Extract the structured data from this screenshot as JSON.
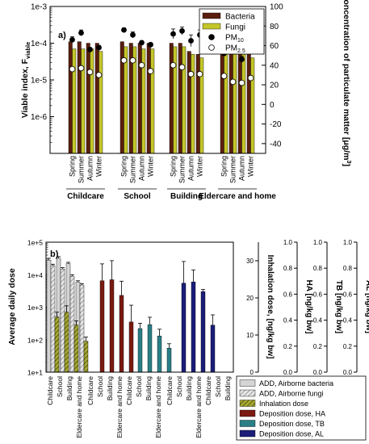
{
  "chart_data": [
    {
      "panel_label": "a)",
      "type": "bar",
      "ylabel": "Viable index, F",
      "ylabel_sub": "viable",
      "y2label": "Concentration of particulate matter [μg/m",
      "y2label_sup": "3",
      "y2label_end": "]",
      "yscale": "log",
      "ylim": [
        1e-07,
        0.001
      ],
      "yticks": [
        "1e-6",
        "1e-5",
        "1e-4",
        "1e-3"
      ],
      "y2lim": [
        -50,
        100
      ],
      "y2ticks": [
        "-40",
        "-20",
        "0",
        "20",
        "40",
        "60",
        "80",
        "100"
      ],
      "groups": [
        "Childcare",
        "School",
        "Building",
        "Eldercare and home"
      ],
      "seasons": [
        "Spring",
        "Summer",
        "Autumn",
        "Winter"
      ],
      "colors": {
        "Bacteria": "#5a1e0e",
        "Fungi": "#c4c62a",
        "PM10": "#000000",
        "PM2.5": "#ffffff"
      },
      "legend": [
        {
          "label": "Bacteria",
          "kind": "bar"
        },
        {
          "label": "Fungi",
          "kind": "bar"
        },
        {
          "label": "PM",
          "sub": "10",
          "kind": "filled-circle"
        },
        {
          "label": "PM",
          "sub": "2.5",
          "kind": "open-circle"
        }
      ],
      "series": [
        {
          "name": "Bacteria",
          "values": [
            [
              0.00011,
              0.00011,
              0.0001,
              0.0001
            ],
            [
              0.00011,
              0.0001,
              0.0001,
              0.0001
            ],
            [
              0.0001,
              0.0001,
              6e-05,
              5e-05
            ],
            [
              0.0001,
              0.0001,
              0.0001,
              7e-05
            ]
          ]
        },
        {
          "name": "Fungi",
          "values": [
            [
              7e-05,
              7e-05,
              7e-05,
              6e-05
            ],
            [
              8e-05,
              8e-05,
              7e-05,
              7e-05
            ],
            [
              8e-05,
              8e-05,
              5e-05,
              4e-05
            ],
            [
              5e-05,
              5e-05,
              5e-05,
              4e-05
            ]
          ]
        },
        {
          "name": "PM10",
          "axis": "right",
          "values": [
            [
              66,
              73,
              56,
              58
            ],
            [
              76,
              71,
              63,
              61
            ],
            [
              72,
              75,
              65,
              71
            ],
            [
              52,
              59,
              46,
              54
            ]
          ],
          "errors": [
            [
              3,
              3,
              2,
              2
            ],
            [
              2,
              3,
              2,
              2
            ],
            [
              5,
              4,
              6,
              5
            ],
            [
              2,
              2,
              3,
              3
            ]
          ]
        },
        {
          "name": "PM2.5",
          "axis": "right",
          "values": [
            [
              36,
              37,
              33,
              30
            ],
            [
              45,
              45,
              40,
              34
            ],
            [
              40,
              38,
              31,
              31
            ],
            [
              29,
              23,
              22,
              27
            ]
          ]
        }
      ]
    },
    {
      "panel_label": "b)",
      "type": "bar",
      "ylabel": "Average daily dose",
      "yscale": "log",
      "ylim": [
        10,
        100000
      ],
      "yticks": [
        "1e+1",
        "1e+2",
        "1e+3",
        "1e+4",
        "1e+5"
      ],
      "right_axes": [
        {
          "label": "Inhalation dose, [ng/kg bw]",
          "ticks": [
            "0",
            "10",
            "20",
            "30"
          ],
          "lim": [
            0,
            35
          ]
        },
        {
          "label": "HA [ng/kg bw]",
          "ticks": [
            "0.0",
            "0.2",
            "0.4",
            "0.6",
            "0.8",
            "1.0"
          ],
          "lim": [
            0,
            1
          ]
        },
        {
          "label": "TB [ng/kg bw]",
          "ticks": [
            "0.0",
            "0.2",
            "0.4",
            "0.6",
            "0.8",
            "1.0"
          ],
          "lim": [
            0,
            1
          ]
        },
        {
          "label": "AL [ng/kg bw]",
          "ticks": [
            "0.0",
            "0.2",
            "0.4",
            "0.6",
            "0.8",
            "1.0"
          ],
          "lim": [
            0,
            1
          ]
        }
      ],
      "categories": [
        "Childcare",
        "School",
        "Building",
        "Eldercare and home"
      ],
      "legend": [
        {
          "label": "ADD, Airborne bacteria",
          "style": "gray"
        },
        {
          "label": "ADD, Airborne fungi",
          "style": "hatch"
        },
        {
          "label": "Inhalation dose",
          "style": "olive-hatch"
        },
        {
          "label": "Deposition dose, HA",
          "style": "#7a1a10"
        },
        {
          "label": "Deposition dose, TB",
          "style": "#2a7f86"
        },
        {
          "label": "Deposition dose, AL",
          "style": "#1b1d78"
        }
      ],
      "series": [
        {
          "name": "ADD, Airborne bacteria",
          "axis": "left",
          "values": [
            28000,
            32000,
            22000,
            6000
          ],
          "errors": [
            4000,
            4000,
            2000,
            500
          ]
        },
        {
          "name": "ADD, Airborne fungi",
          "axis": "left",
          "values": [
            19000,
            15000,
            9000,
            4800
          ],
          "errors": [
            2000,
            1500,
            1000,
            500
          ]
        },
        {
          "name": "Inhalation dose",
          "axis": "inhalation",
          "values": [
            500,
            700,
            280,
            90
          ],
          "errors": [
            200,
            400,
            100,
            30
          ]
        },
        {
          "name": "Deposition dose, HA",
          "axis": "left",
          "values": [
            6500,
            7000,
            2300,
            350
          ],
          "errors": [
            15000,
            20000,
            4000,
            800
          ]
        },
        {
          "name": "Deposition dose, TB",
          "axis": "left",
          "values": [
            220,
            290,
            130,
            55
          ],
          "errors": [
            100,
            200,
            80,
            20
          ]
        },
        {
          "name": "Deposition dose, AL",
          "axis": "left",
          "values": [
            5500,
            6000,
            3000,
            280
          ],
          "errors": [
            20000,
            8000,
            500,
            300
          ]
        }
      ]
    }
  ]
}
